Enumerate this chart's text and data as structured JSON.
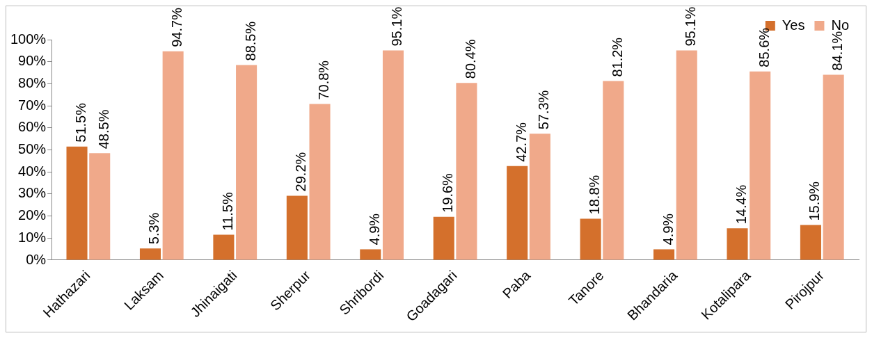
{
  "chart_data": {
    "type": "bar",
    "categories": [
      "Hathazari",
      "Laksam",
      "Jhinaigati",
      "Sherpur",
      "Shribordi",
      "Goadagari",
      "Paba",
      "Tanore",
      "Bhandaria",
      "Kotalipara",
      "Pirojpur"
    ],
    "series": [
      {
        "name": "Yes",
        "color": "#d4702c",
        "values": [
          51.5,
          5.3,
          11.5,
          29.2,
          4.9,
          19.6,
          42.7,
          18.8,
          4.9,
          14.4,
          15.9
        ],
        "value_labels": [
          "51.5%",
          "5.3%",
          "11.5%",
          "29.2%",
          "4.9%",
          "19.6%",
          "42.7%",
          "18.8%",
          "4.9%",
          "14.4%",
          "15.9%"
        ]
      },
      {
        "name": "No",
        "color": "#f0a98a",
        "values": [
          48.5,
          94.7,
          88.5,
          70.8,
          95.1,
          80.4,
          57.3,
          81.2,
          95.1,
          85.6,
          84.1
        ],
        "value_labels": [
          "48.5%",
          "94.7%",
          "88.5%",
          "70.8%",
          "95.1%",
          "80.4%",
          "57.3%",
          "81.2%",
          "95.1%",
          "85.6%",
          "84.1%"
        ]
      }
    ],
    "ylim": [
      0,
      100
    ],
    "yticks": [
      {
        "value": 0,
        "label": "0%"
      },
      {
        "value": 10,
        "label": "10%"
      },
      {
        "value": 20,
        "label": "20%"
      },
      {
        "value": 30,
        "label": "30%"
      },
      {
        "value": 40,
        "label": "40%"
      },
      {
        "value": 50,
        "label": "50%"
      },
      {
        "value": 60,
        "label": "60%"
      },
      {
        "value": 70,
        "label": "70%"
      },
      {
        "value": 80,
        "label": "80%"
      },
      {
        "value": 90,
        "label": "90%"
      },
      {
        "value": 100,
        "label": "100%"
      }
    ],
    "grid": false,
    "legend": "top"
  }
}
